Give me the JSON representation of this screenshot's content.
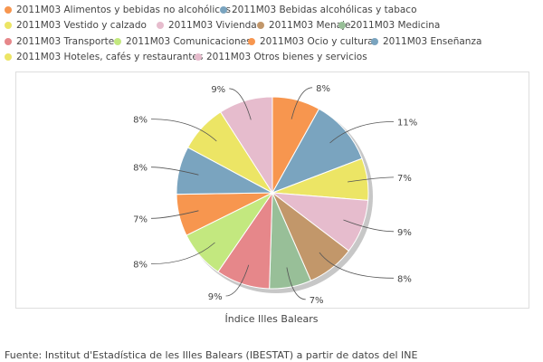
{
  "chart_data": {
    "type": "pie",
    "title": "Índice Illes Balears",
    "categories": [
      "2011M03 Alimentos y bebidas no alcohólicas",
      "2011M03 Bebidas alcohólicas y tabaco",
      "2011M03 Vestido y calzado",
      "2011M03 Vivienda",
      "2011M03 Menaje",
      "2011M03 Medicina",
      "2011M03 Transporte",
      "2011M03 Comunicaciones",
      "2011M03 Ocio y cultura",
      "2011M03 Enseñanza",
      "2011M03 Hoteles, cafés y restaurantes",
      "2011M03 Otros bienes y servicios"
    ],
    "values": [
      8,
      11,
      7,
      9,
      8,
      7,
      9,
      8,
      7,
      8,
      8,
      9
    ],
    "labels": [
      "8%",
      "11%",
      "7%",
      "9%",
      "8%",
      "7%",
      "9%",
      "8%",
      "7%",
      "8%",
      "8%",
      "9%"
    ],
    "colors": [
      "#f7964f",
      "#7aa4bf",
      "#ece565",
      "#e6bccd",
      "#c2976a",
      "#98bf98",
      "#e6878a",
      "#c3e87f",
      "#f7964f",
      "#7aa4bf",
      "#ece565",
      "#e6bccd"
    ],
    "source": "Fuente: Institut d'Estadística de les Illes Balears (IBESTAT) a partir de datos del INE"
  }
}
